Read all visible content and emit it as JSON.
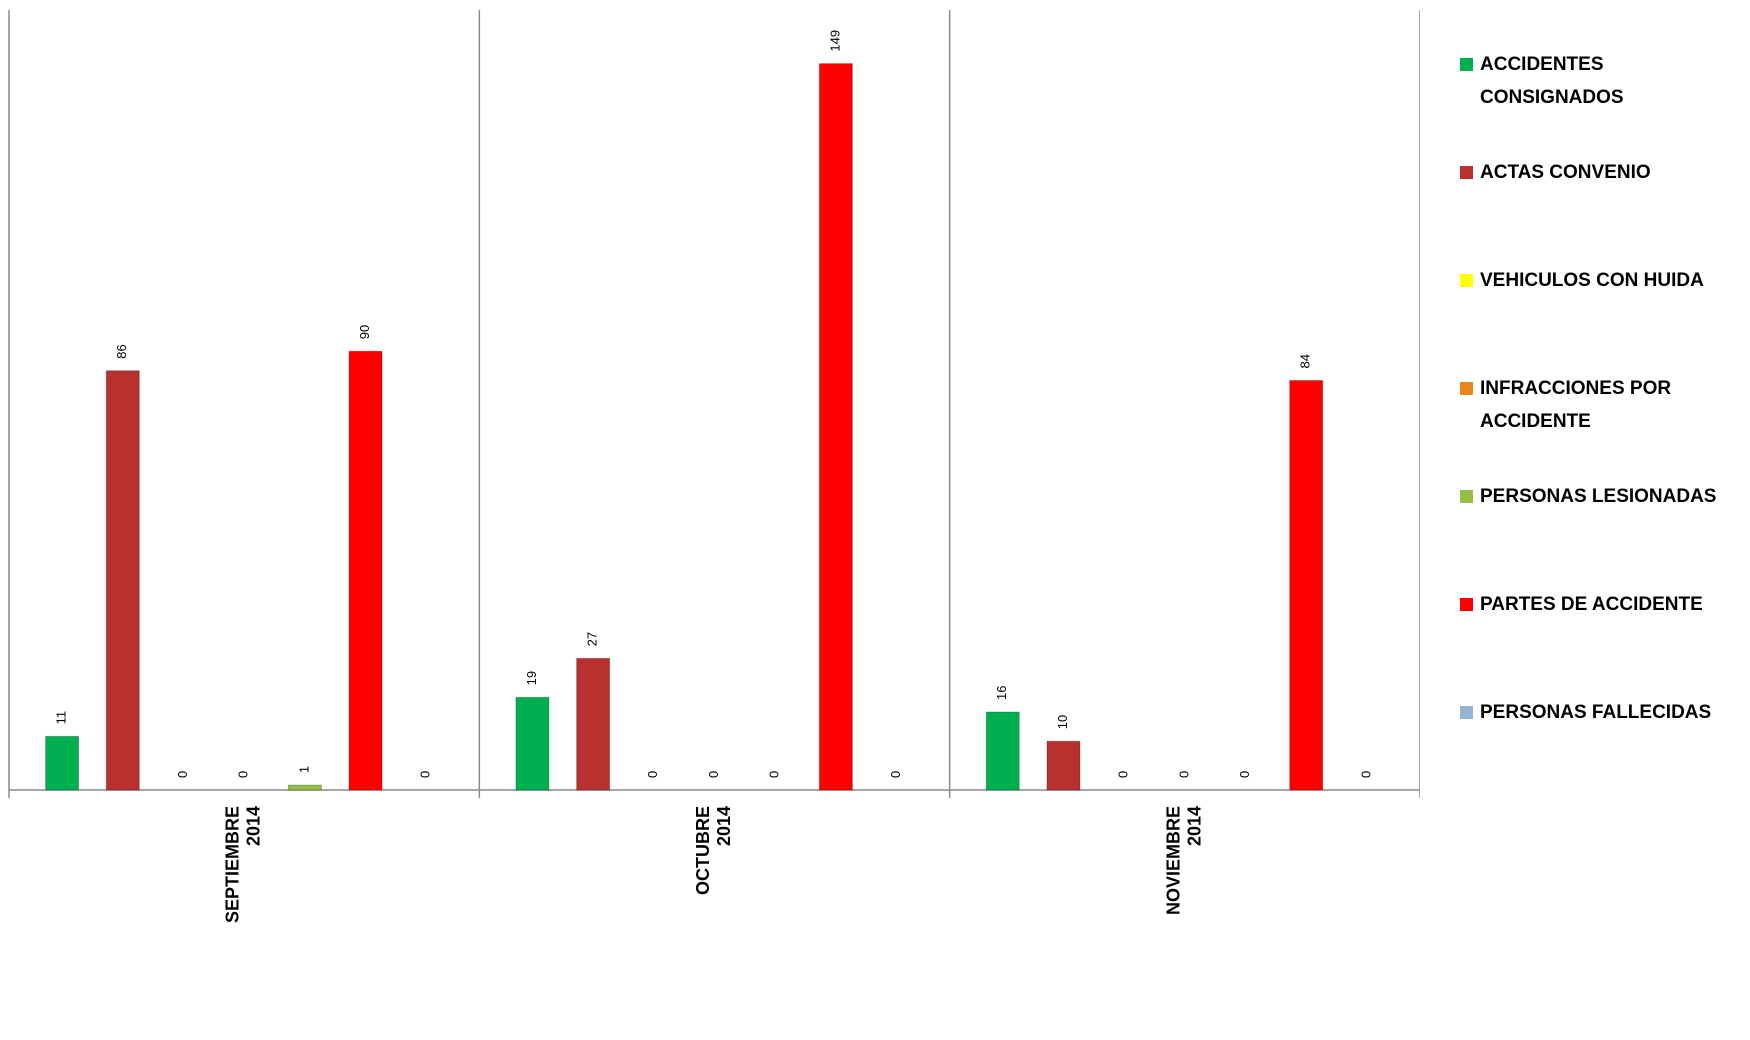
{
  "chart_data": {
    "type": "bar",
    "categories": [
      "SEPTIEMBRE 2014",
      "OCTUBRE 2014",
      "NOVIEMBRE 2014"
    ],
    "series": [
      {
        "name": "ACCIDENTES CONSIGNADOS",
        "color": "#00b050",
        "values": [
          11,
          19,
          16
        ]
      },
      {
        "name": "ACTAS CONVENIO",
        "color": "#b8312f",
        "values": [
          86,
          27,
          10
        ]
      },
      {
        "name": "VEHICULOS CON HUIDA",
        "color": "#ffff00",
        "values": [
          0,
          0,
          0
        ]
      },
      {
        "name": "INFRACCIONES POR ACCIDENTE",
        "color": "#e6861c",
        "values": [
          0,
          0,
          0
        ]
      },
      {
        "name": "PERSONAS LESIONADAS",
        "color": "#92c043",
        "values": [
          1,
          0,
          0
        ]
      },
      {
        "name": "PARTES DE ACCIDENTE",
        "color": "#ff0000",
        "values": [
          90,
          149,
          84
        ]
      },
      {
        "name": "PERSONAS FALLECIDAS",
        "color": "#95b3d7",
        "values": [
          0,
          0,
          0
        ]
      }
    ],
    "ylim": [
      0,
      160
    ]
  }
}
